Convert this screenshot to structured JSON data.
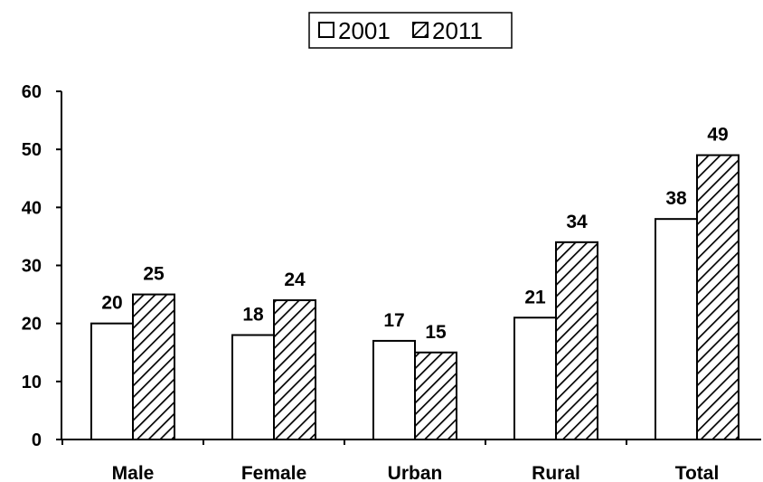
{
  "chart_data": {
    "type": "bar",
    "categories": [
      "Male",
      "Female",
      "Urban",
      "Rural",
      "Total"
    ],
    "series": [
      {
        "name": "2001",
        "values": [
          20,
          18,
          17,
          21,
          38
        ],
        "pattern": "none",
        "fill": "#ffffff"
      },
      {
        "name": "2011",
        "values": [
          25,
          24,
          15,
          34,
          49
        ],
        "pattern": "diagonal-hatch",
        "fill": "#ffffff"
      }
    ],
    "y_ticks": [
      "0",
      "10",
      "20",
      "30",
      "40",
      "50",
      "60"
    ],
    "ylim": [
      0,
      60
    ],
    "data_labels": true,
    "grid": false,
    "legend_position": "top-center"
  }
}
